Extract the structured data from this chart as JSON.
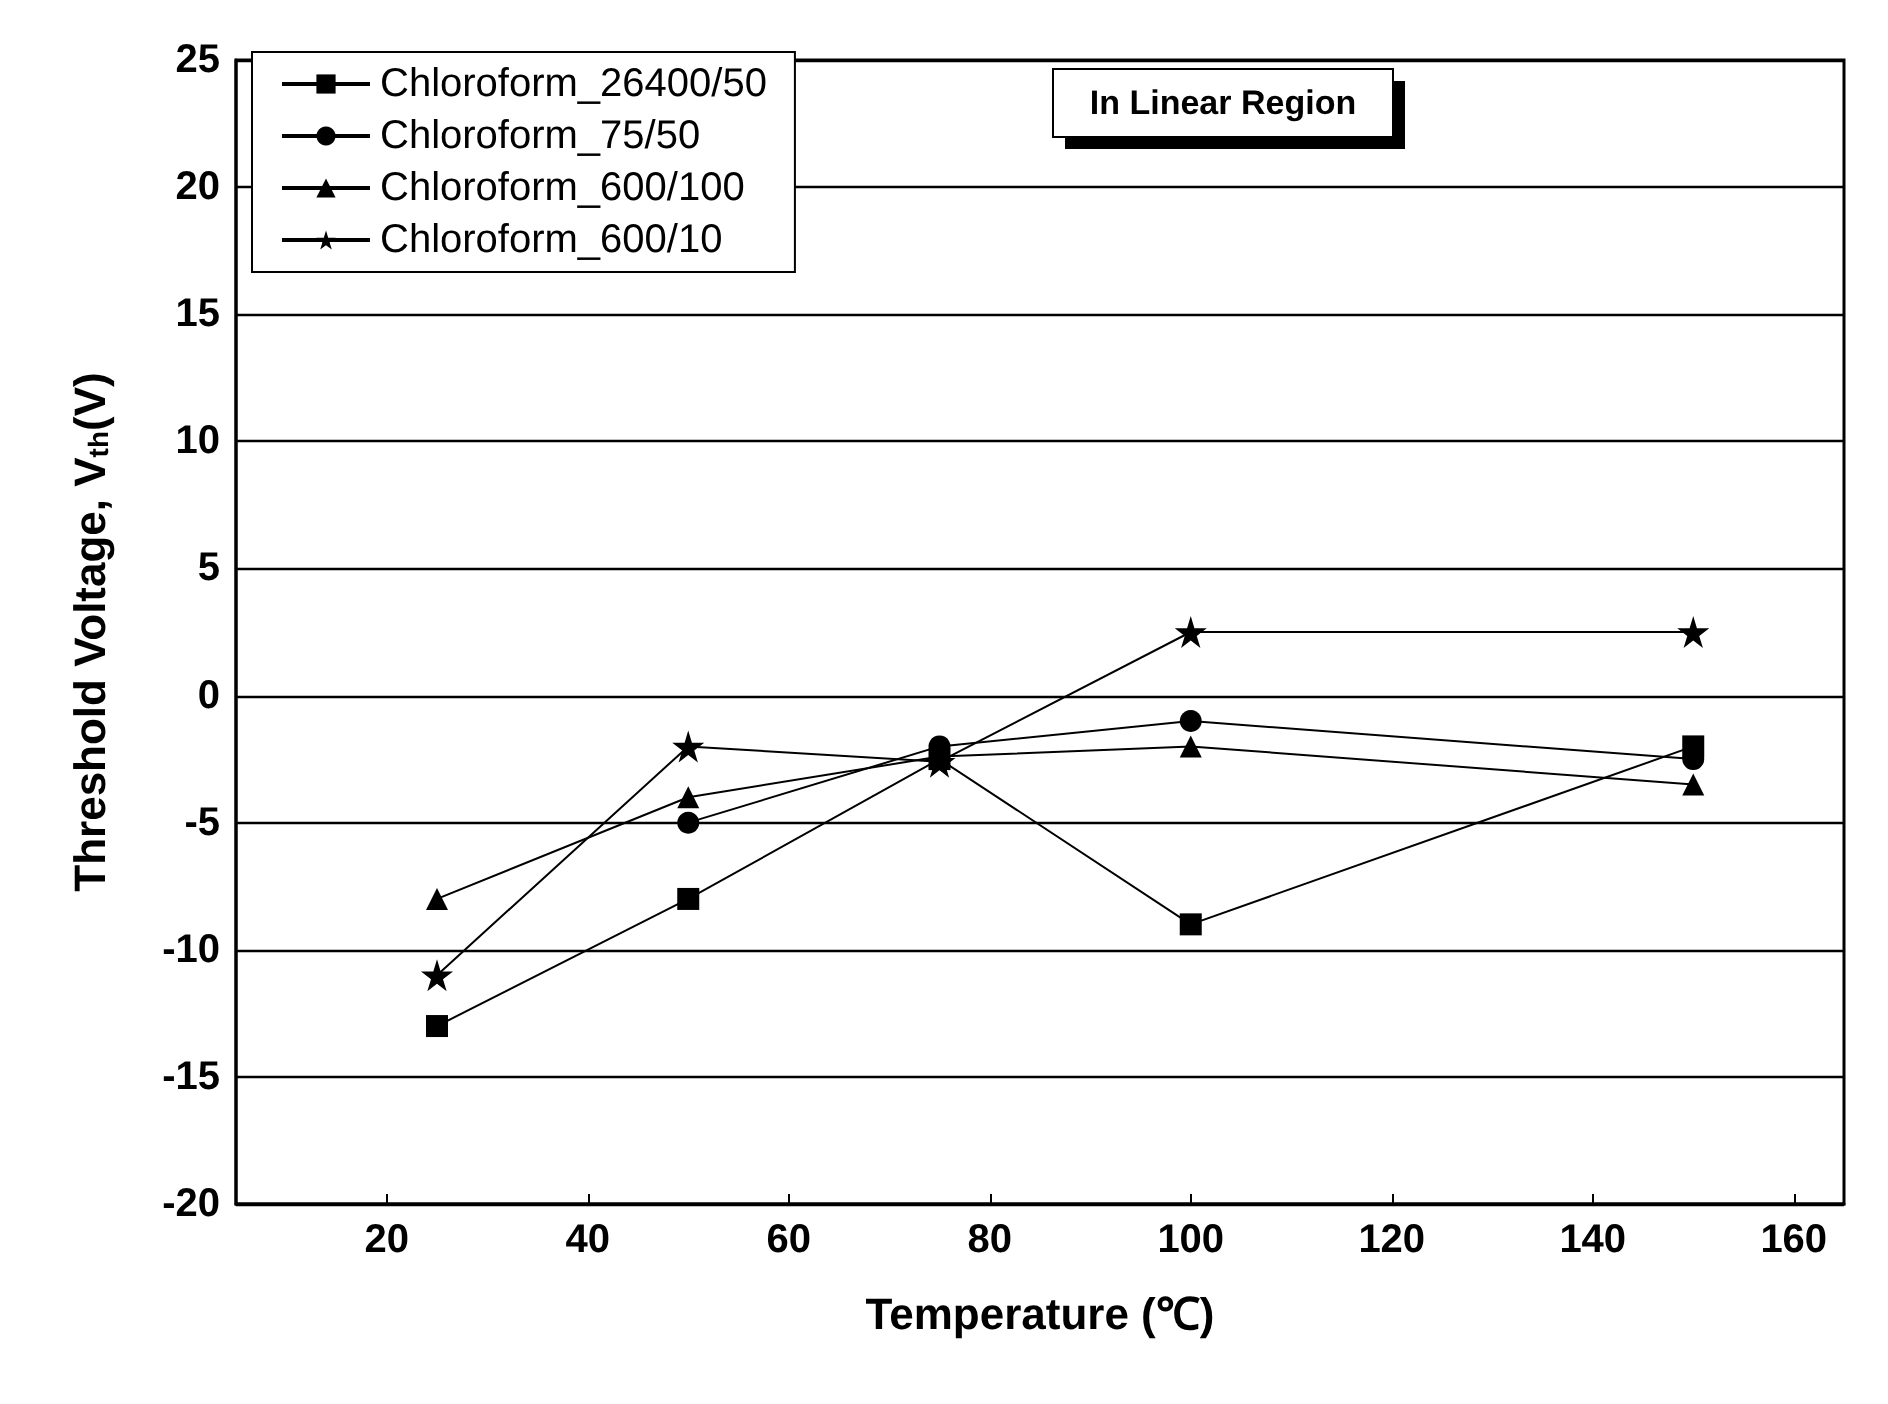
{
  "chart_data": {
    "type": "line",
    "xlabel": "Temperature (℃)",
    "ylabel": "Threshold Voltage, V$_{th}$(V)",
    "annotations": [
      "In Linear Region"
    ],
    "x": [
      25,
      50,
      75,
      100,
      150
    ],
    "xlim": [
      5,
      165
    ],
    "xticks": [
      20,
      40,
      60,
      80,
      100,
      120,
      140,
      160
    ],
    "ylim": [
      -20,
      25
    ],
    "yticks": [
      -20,
      -15,
      -10,
      -5,
      0,
      5,
      10,
      15,
      20,
      25
    ],
    "grid": "y",
    "legend": "top left",
    "line_style": "solid",
    "series": [
      {
        "name": "Chloroform_26400/50",
        "color": "#000000",
        "marker": "square",
        "values": [
          -13,
          -8,
          -2.5,
          -9,
          -2
        ]
      },
      {
        "name": "Chloroform_75/50",
        "color": "#000000",
        "marker": "circle",
        "values": [
          null,
          -5,
          -2,
          -1,
          -2.5
        ]
      },
      {
        "name": "Chloroform_600/100",
        "color": "#000000",
        "marker": "triangle",
        "values": [
          -8,
          -4,
          -2.4,
          -2,
          -3.5
        ]
      },
      {
        "name": "Chloroform_600/10",
        "color": "#000000",
        "marker": "star",
        "values": [
          -11,
          -2,
          -2.6,
          2.5,
          2.5
        ]
      }
    ]
  }
}
